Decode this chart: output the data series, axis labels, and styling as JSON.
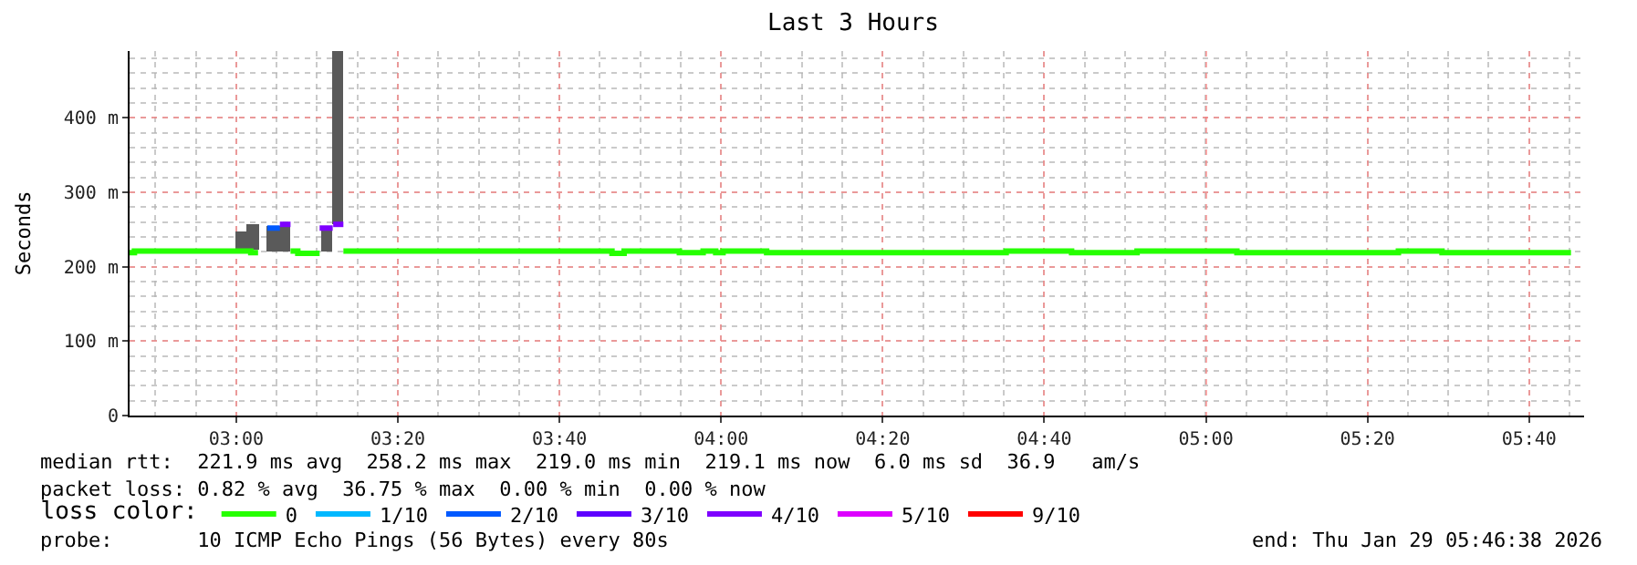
{
  "chart_data": {
    "type": "step",
    "title": "Last 3 Hours",
    "ylabel": "Seconds",
    "legend_title": "loss color:",
    "xlim": [
      2.78,
      5.78
    ],
    "ylim": [
      0,
      490
    ],
    "xticks": [
      {
        "value": 3,
        "label": "03:00"
      },
      {
        "value": 3.3333,
        "label": "03:20"
      },
      {
        "value": 3.6667,
        "label": "03:40"
      },
      {
        "value": 4,
        "label": "04:00"
      },
      {
        "value": 4.3333,
        "label": "04:20"
      },
      {
        "value": 4.6667,
        "label": "04:40"
      },
      {
        "value": 5,
        "label": "05:00"
      },
      {
        "value": 5.3333,
        "label": "05:20"
      },
      {
        "value": 5.6667,
        "label": "05:40"
      }
    ],
    "yticks": [
      0,
      {
        "value": 100,
        "label": "100 m"
      },
      {
        "value": 200,
        "label": "200 m"
      },
      {
        "value": 300,
        "label": "300 m"
      },
      {
        "value": 400,
        "label": "400 m"
      }
    ],
    "grid": true,
    "legend": "bottom",
    "series": [
      {
        "type": "bar",
        "color": "#5a5a5a",
        "x": [
          3.011,
          3.034,
          3.076,
          3.1,
          3.186,
          3.21
        ],
        "base": [
          224,
          222,
          221,
          221,
          221,
          258
        ],
        "values": [
          24,
          36,
          34,
          34,
          32,
          232
        ]
      },
      {
        "name": "0",
        "color": "#26ff00",
        "x": [
          2.78,
          2.79,
          3.03,
          3.045,
          3.046,
          3.112,
          3.127,
          3.172,
          3.173,
          3.221,
          3.775,
          3.8,
          3.914,
          3.963,
          3.989,
          4.004,
          4.094,
          4.588,
          4.723,
          4.858,
          5.064,
          5.397,
          5.487,
          5.753
        ],
        "values": [
          219,
          221,
          219,
          219,
          null,
          221,
          218,
          218,
          null,
          221,
          218,
          221,
          219,
          221,
          219,
          221,
          219,
          221,
          219,
          221,
          219,
          221,
          219,
          219
        ]
      },
      {
        "name": "1/10",
        "color": "#00b8ff"
      },
      {
        "name": "2/10",
        "color": "#0059ff",
        "x": [
          3.064,
          3.09
        ],
        "values": [
          252,
          252
        ]
      },
      {
        "name": "3/10",
        "color": "#5e00ff"
      },
      {
        "name": "4/10",
        "color": "#7e00ff",
        "x": [
          3.09,
          3.112,
          3.113,
          3.172,
          3.199,
          3.1995,
          3.2,
          3.221
        ],
        "values": [
          257,
          257,
          null,
          252,
          252,
          null,
          257,
          257
        ]
      },
      {
        "name": "5/10",
        "color": "#dd00ff"
      },
      {
        "name": "9/10",
        "color": "#ff0000"
      }
    ],
    "annotations": [
      "median rtt:  221.9 ms avg  258.2 ms max  219.0 ms min  219.1 ms now  6.0 ms sd  36.9   am/s",
      "packet loss: 0.82 % avg  36.75 % max  0.00 % min  0.00 % now",
      "probe:       10 ICMP Echo Pings (56 Bytes) every 80s",
      "end: Thu Jan 29 05:46:38 2026"
    ]
  }
}
